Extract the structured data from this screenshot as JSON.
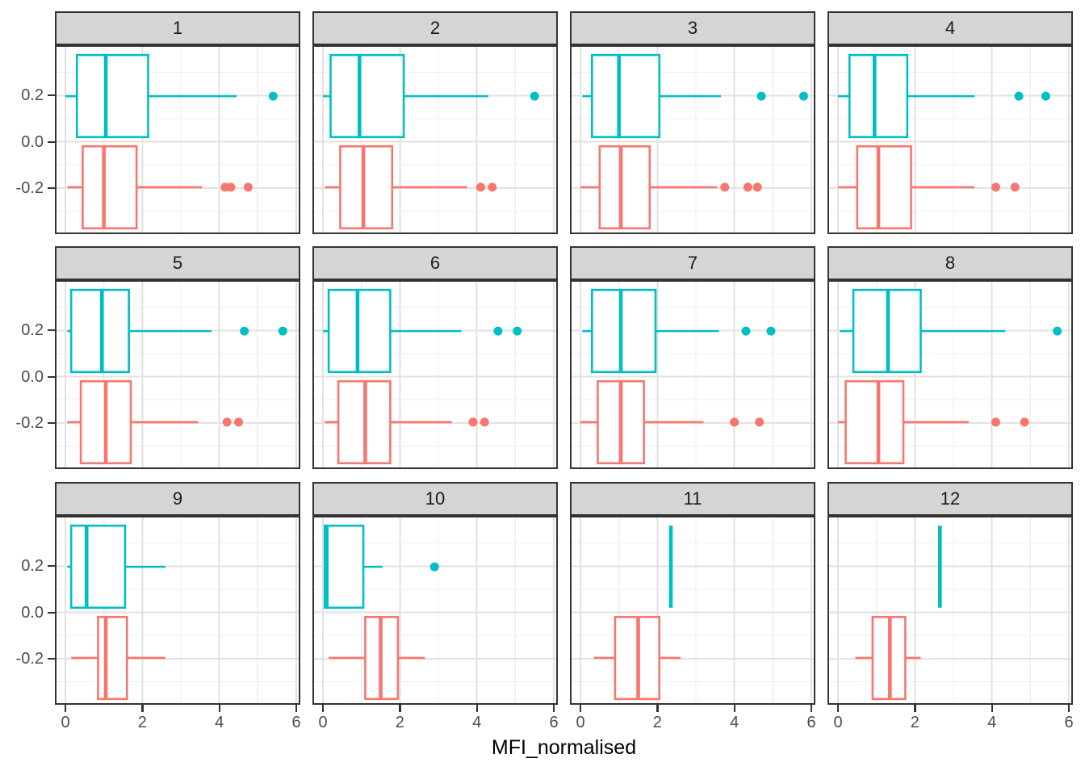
{
  "figure_title": "",
  "chart_data": {
    "type": "boxplot",
    "orientation": "horizontal",
    "facet_layout": "wrap_4x3",
    "title": "",
    "xlabel": "MFI_normalised",
    "ylabel": "",
    "xlim": [
      -0.3,
      6.1
    ],
    "ylim": [
      -0.4,
      0.42
    ],
    "x_major_ticks": [
      0,
      2,
      4,
      6
    ],
    "x_minor_ticks": [
      1,
      3,
      5
    ],
    "x_tick_labels": [
      "0",
      "2",
      "4",
      "6"
    ],
    "y_major_ticks": [
      0.2,
      0.0,
      -0.2
    ],
    "y_minor_ticks": [
      0.3,
      0.1,
      -0.1,
      -0.3
    ],
    "y_tick_labels": [
      "0.2",
      "0.0",
      "-0.2"
    ],
    "grid": "on",
    "legend": "none",
    "series_colors": {
      "group_top": "#00BFC4",
      "group_bottom": "#F8766D"
    },
    "series_layout": {
      "group_top": {
        "y_center": 0.197,
        "box_top": 0.375,
        "box_bottom": 0.02
      },
      "group_bottom": {
        "y_center": -0.197,
        "box_top": -0.02,
        "box_bottom": -0.375
      }
    },
    "facets": [
      {
        "label": "1",
        "group_top": {
          "min": 0.0,
          "q1": 0.3,
          "median": 1.05,
          "q3": 2.15,
          "max": 4.45,
          "outliers": [
            5.4
          ]
        },
        "group_bottom": {
          "min": 0.05,
          "q1": 0.45,
          "median": 1.0,
          "q3": 1.85,
          "max": 3.55,
          "outliers": [
            4.15,
            4.3,
            4.75
          ]
        }
      },
      {
        "label": "2",
        "group_top": {
          "min": 0.0,
          "q1": 0.2,
          "median": 0.95,
          "q3": 2.1,
          "max": 4.3,
          "outliers": [
            5.5
          ]
        },
        "group_bottom": {
          "min": 0.05,
          "q1": 0.45,
          "median": 1.05,
          "q3": 1.8,
          "max": 3.75,
          "outliers": [
            4.1,
            4.4
          ]
        }
      },
      {
        "label": "3",
        "group_top": {
          "min": 0.05,
          "q1": 0.3,
          "median": 1.0,
          "q3": 2.05,
          "max": 3.65,
          "outliers": [
            4.7,
            5.8
          ]
        },
        "group_bottom": {
          "min": 0.0,
          "q1": 0.5,
          "median": 1.05,
          "q3": 1.8,
          "max": 3.55,
          "outliers": [
            3.75,
            4.35,
            4.6
          ]
        }
      },
      {
        "label": "4",
        "group_top": {
          "min": 0.0,
          "q1": 0.3,
          "median": 0.95,
          "q3": 1.8,
          "max": 3.55,
          "outliers": [
            4.7,
            5.4
          ]
        },
        "group_bottom": {
          "min": 0.0,
          "q1": 0.5,
          "median": 1.05,
          "q3": 1.9,
          "max": 3.55,
          "outliers": [
            4.1,
            4.6
          ]
        }
      },
      {
        "label": "5",
        "group_top": {
          "min": 0.05,
          "q1": 0.15,
          "median": 0.95,
          "q3": 1.65,
          "max": 3.8,
          "outliers": [
            4.65,
            5.65
          ]
        },
        "group_bottom": {
          "min": 0.05,
          "q1": 0.4,
          "median": 1.05,
          "q3": 1.7,
          "max": 3.45,
          "outliers": [
            4.2,
            4.5
          ]
        }
      },
      {
        "label": "6",
        "group_top": {
          "min": 0.0,
          "q1": 0.15,
          "median": 0.9,
          "q3": 1.75,
          "max": 3.6,
          "outliers": [
            4.55,
            5.05
          ]
        },
        "group_bottom": {
          "min": 0.05,
          "q1": 0.4,
          "median": 1.1,
          "q3": 1.75,
          "max": 3.35,
          "outliers": [
            3.9,
            4.2
          ]
        }
      },
      {
        "label": "7",
        "group_top": {
          "min": 0.05,
          "q1": 0.3,
          "median": 1.05,
          "q3": 1.95,
          "max": 3.6,
          "outliers": [
            4.3,
            4.95
          ]
        },
        "group_bottom": {
          "min": 0.0,
          "q1": 0.45,
          "median": 1.05,
          "q3": 1.65,
          "max": 3.2,
          "outliers": [
            4.0,
            4.65
          ]
        }
      },
      {
        "label": "8",
        "group_top": {
          "min": 0.05,
          "q1": 0.4,
          "median": 1.3,
          "q3": 2.15,
          "max": 4.35,
          "outliers": [
            5.7
          ]
        },
        "group_bottom": {
          "min": 0.0,
          "q1": 0.2,
          "median": 1.05,
          "q3": 1.7,
          "max": 3.4,
          "outliers": [
            4.1,
            4.85
          ]
        }
      },
      {
        "label": "9",
        "group_top": {
          "min": 0.05,
          "q1": 0.15,
          "median": 0.55,
          "q3": 1.55,
          "max": 2.6,
          "outliers": []
        },
        "group_bottom": {
          "min": 0.15,
          "q1": 0.85,
          "median": 1.05,
          "q3": 1.6,
          "max": 2.6,
          "outliers": []
        }
      },
      {
        "label": "10",
        "group_top": {
          "min": 0.05,
          "q1": 0.05,
          "median": 0.1,
          "q3": 1.05,
          "max": 1.55,
          "outliers": [
            2.9
          ]
        },
        "group_bottom": {
          "min": 0.15,
          "q1": 1.1,
          "median": 1.5,
          "q3": 1.95,
          "max": 2.65,
          "outliers": []
        }
      },
      {
        "label": "11",
        "group_top": {
          "min": 2.35,
          "q1": 2.35,
          "median": 2.35,
          "q3": 2.35,
          "max": 2.35,
          "outliers": []
        },
        "group_bottom": {
          "min": 0.35,
          "q1": 0.9,
          "median": 1.5,
          "q3": 2.05,
          "max": 2.6,
          "outliers": []
        }
      },
      {
        "label": "12",
        "group_top": {
          "min": 2.65,
          "q1": 2.65,
          "median": 2.65,
          "q3": 2.65,
          "max": 2.65,
          "outliers": []
        },
        "group_bottom": {
          "min": 0.45,
          "q1": 0.9,
          "median": 1.35,
          "q3": 1.75,
          "max": 2.15,
          "outliers": []
        }
      }
    ]
  },
  "style_colors": {
    "strip_fill": "#d5d5d5",
    "border": "#333333",
    "grid_major": "#e2e2e2",
    "grid_minor": "#efefef",
    "tick_label": "#4d4d4d",
    "axis_title": "#000000"
  }
}
